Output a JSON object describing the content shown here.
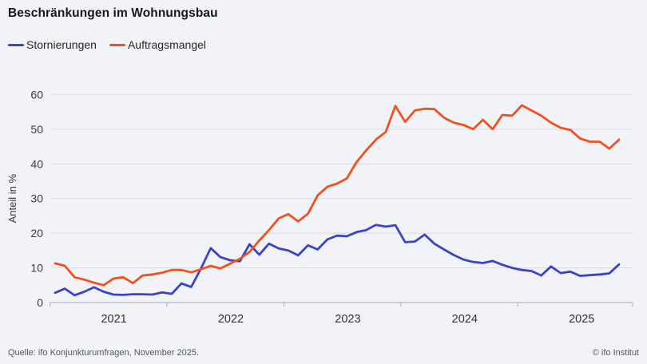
{
  "title": "Beschränkungen im Wohnungsbau",
  "legend": {
    "items": [
      {
        "label": "Stornierungen",
        "color": "#3b43c8"
      },
      {
        "label": "Auftragsmangel",
        "color": "#f1511f"
      }
    ]
  },
  "footer": {
    "source": "Quelle: ifo Konjunkturumfragen, November 2025.",
    "copyright": "© ifo Institut"
  },
  "chart_data": {
    "type": "line",
    "title": "Beschränkungen im Wohnungsbau",
    "ylabel": "Anteil in %",
    "ylim": [
      0,
      60
    ],
    "yticks": [
      0,
      10,
      20,
      30,
      40,
      50,
      60
    ],
    "x_years": [
      "2021",
      "2022",
      "2023",
      "2024",
      "2025"
    ],
    "x_start": "2021-01",
    "x_end": "2025-11",
    "frequency": "monthly",
    "grid": true,
    "legend_position": "top-left",
    "colors": {
      "background": "#f2f3f8",
      "gridline": "#d9dbe1",
      "axis": "#a7abb5",
      "tick_text": "#383b42"
    },
    "series": [
      {
        "name": "Stornierungen",
        "color": "#3b43c8",
        "values": [
          2.8,
          4.0,
          2.1,
          3.1,
          4.4,
          3.1,
          2.3,
          2.2,
          2.4,
          2.4,
          2.3,
          2.9,
          2.5,
          5.5,
          4.5,
          9.8,
          15.7,
          13.1,
          12.2,
          11.9,
          16.8,
          13.8,
          17.0,
          15.6,
          15.0,
          13.6,
          16.5,
          15.3,
          18.2,
          19.3,
          19.1,
          20.3,
          20.9,
          22.4,
          21.9,
          22.3,
          17.4,
          17.6,
          19.6,
          17.0,
          15.3,
          13.7,
          12.4,
          11.7,
          11.4,
          12.0,
          10.9,
          10.0,
          9.4,
          9.1,
          7.8,
          10.4,
          8.5,
          8.9,
          7.7,
          7.9,
          8.1,
          8.4,
          11.0
        ]
      },
      {
        "name": "Auftragsmangel",
        "color": "#f1511f",
        "values": [
          11.3,
          10.6,
          7.3,
          6.6,
          5.7,
          5.0,
          6.9,
          7.3,
          5.6,
          7.8,
          8.1,
          8.6,
          9.4,
          9.4,
          8.7,
          9.6,
          10.6,
          9.8,
          11.2,
          12.6,
          14.6,
          17.9,
          20.9,
          24.3,
          25.5,
          23.4,
          25.6,
          30.9,
          33.4,
          34.3,
          35.8,
          40.5,
          43.9,
          47.0,
          49.2,
          56.7,
          52.1,
          55.4,
          55.9,
          55.8,
          53.3,
          51.9,
          51.2,
          50.0,
          52.7,
          50.0,
          54.1,
          53.9,
          56.9,
          55.4,
          53.9,
          51.9,
          50.4,
          49.8,
          47.3,
          46.4,
          46.4,
          44.4,
          47.0
        ]
      }
    ]
  }
}
